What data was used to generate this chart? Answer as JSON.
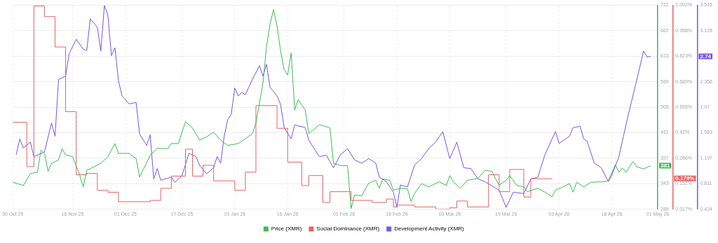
{
  "chart_data": {
    "type": "line",
    "legend": "bottom",
    "grid": true,
    "marker": "none",
    "line_style": "solid",
    "xlim": [
      "2025-10-30",
      "2026-05-01"
    ],
    "xticks": [
      {
        "value": "2025-10-30",
        "label": "30 Oct 25"
      },
      {
        "value": "2025-11-16",
        "label": "16 Nov 25"
      },
      {
        "value": "2025-12-01",
        "label": "01 Dec 25"
      },
      {
        "value": "2025-12-17",
        "label": "17 Dec 25"
      },
      {
        "value": "2026-01-01",
        "label": "01 Jan 26"
      },
      {
        "value": "2026-01-16",
        "label": "16 Jan 26"
      },
      {
        "value": "2026-02-01",
        "label": "01 Feb 26"
      },
      {
        "value": "2026-02-16",
        "label": "16 Feb 26"
      },
      {
        "value": "2026-03-03",
        "label": "03 Mar 26"
      },
      {
        "value": "2026-03-19",
        "label": "19 Mar 26"
      },
      {
        "value": "2026-04-03",
        "label": "03 Apr 26"
      },
      {
        "value": "2026-04-18",
        "label": "18 Apr 26"
      },
      {
        "value": "2026-05-01",
        "label": "01 May 26"
      }
    ],
    "ylim": [
      289,
      721
    ],
    "yticks": [
      289,
      343,
      381,
      397,
      451,
      505,
      559,
      613,
      667,
      721
    ],
    "y2lim": [
      0.017,
      1.092
    ],
    "y2ticks": [
      {
        "value": 0.017,
        "label": "0.017%"
      },
      {
        "value": 0.152,
        "label": "0.152%"
      },
      {
        "value": 0.179,
        "label": "0.179%"
      },
      {
        "value": 0.286,
        "label": "0.286%"
      },
      {
        "value": 0.42,
        "label": "0.42%"
      },
      {
        "value": 0.555,
        "label": "0.555%"
      },
      {
        "value": 0.689,
        "label": "0.689%"
      },
      {
        "value": 0.823,
        "label": "0.823%"
      },
      {
        "value": 0.958,
        "label": "0.958%"
      },
      {
        "value": 1.092,
        "label": "1.092%"
      }
    ],
    "y3lim": [
      0.424,
      3.515
    ],
    "y3ticks": [
      0.424,
      0.811,
      1.197,
      1.583,
      1.97,
      2.356,
      2.74,
      3.128,
      3.515
    ],
    "series": [
      {
        "name": "Price (XMR)",
        "type": "line",
        "color": "#3dbb55",
        "x": [
          "2025-10-30",
          "2025-11-02",
          "2025-11-04",
          "2025-11-06",
          "2025-11-07",
          "2025-11-08",
          "2025-11-09",
          "2025-11-10",
          "2025-11-12",
          "2025-11-13",
          "2025-11-14",
          "2025-11-16",
          "2025-11-18",
          "2025-11-19",
          "2025-11-20",
          "2025-11-24",
          "2025-11-26",
          "2025-11-28",
          "2025-11-29",
          "2025-12-02",
          "2025-12-04",
          "2025-12-05",
          "2025-12-08",
          "2025-12-10",
          "2025-12-13",
          "2025-12-14",
          "2025-12-16",
          "2025-12-18",
          "2025-12-20",
          "2025-12-22",
          "2025-12-24",
          "2025-12-26",
          "2025-12-28",
          "2025-12-30",
          "2026-01-02",
          "2026-01-04",
          "2026-01-06",
          "2026-01-07",
          "2026-01-09",
          "2026-01-10",
          "2026-01-11",
          "2026-01-12",
          "2026-01-13",
          "2026-01-14",
          "2026-01-15",
          "2026-01-16",
          "2026-01-17",
          "2026-01-18",
          "2026-01-19",
          "2026-01-21",
          "2026-01-22",
          "2026-01-25",
          "2026-01-28",
          "2026-01-29",
          "2026-01-31",
          "2026-02-02",
          "2026-02-03",
          "2026-02-04",
          "2026-02-06",
          "2026-02-08",
          "2026-02-10",
          "2026-02-11",
          "2026-02-12",
          "2026-02-14",
          "2026-02-15",
          "2026-02-17",
          "2026-02-19",
          "2026-02-20",
          "2026-02-21",
          "2026-02-23",
          "2026-02-25",
          "2026-02-28",
          "2026-03-02",
          "2026-03-03",
          "2026-03-04",
          "2026-03-06",
          "2026-03-08",
          "2026-03-11",
          "2026-03-13",
          "2026-03-15",
          "2026-03-16",
          "2026-03-17",
          "2026-03-19",
          "2026-03-20",
          "2026-03-22",
          "2026-03-24",
          "2026-03-25",
          "2026-03-28",
          "2026-03-30",
          "2026-04-01",
          "2026-04-02",
          "2026-04-06",
          "2026-04-07",
          "2026-04-08",
          "2026-04-10",
          "2026-04-12",
          "2026-04-16",
          "2026-04-17",
          "2026-04-19",
          "2026-04-20",
          "2026-04-21",
          "2026-04-22",
          "2026-04-24",
          "2026-04-25",
          "2026-04-27",
          "2026-04-29"
        ],
        "values": [
          346,
          339,
          364,
          367,
          414,
          408,
          369,
          386,
          393,
          417,
          404,
          400,
          361,
          336,
          371,
          386,
          400,
          428,
          407,
          407,
          396,
          357,
          403,
          418,
          417,
          428,
          428,
          474,
          461,
          435,
          442,
          452,
          435,
          424,
          428,
          438,
          449,
          471,
          556,
          634,
          681,
          712,
          677,
          624,
          585,
          573,
          620,
          499,
          521,
          499,
          449,
          468,
          461,
          386,
          381,
          381,
          290,
          319,
          317,
          344,
          350,
          333,
          353,
          350,
          329,
          333,
          332,
          305,
          322,
          343,
          336,
          347,
          339,
          360,
          347,
          333,
          350,
          354,
          371,
          369,
          353,
          340,
          350,
          360,
          339,
          336,
          326,
          333,
          325,
          315,
          329,
          343,
          325,
          346,
          336,
          346,
          347,
          350,
          383,
          367,
          376,
          367,
          390,
          379,
          374,
          381
        ]
      },
      {
        "name": "Social Dominance (XMR)",
        "type": "step",
        "axis": "y2",
        "color": "#e36464",
        "x": [
          "2025-10-30",
          "2025-11-03",
          "2025-11-05",
          "2025-11-08",
          "2025-11-11",
          "2025-11-14",
          "2025-11-17",
          "2025-11-20",
          "2025-11-23",
          "2025-11-26",
          "2025-11-29",
          "2025-12-08",
          "2025-12-11",
          "2025-12-14",
          "2025-12-18",
          "2025-12-20",
          "2025-12-23",
          "2025-12-26",
          "2026-01-01",
          "2026-01-04",
          "2026-01-07",
          "2026-01-13",
          "2026-01-16",
          "2026-01-20",
          "2026-01-22",
          "2026-01-26",
          "2026-01-28",
          "2026-02-03",
          "2026-02-09",
          "2026-02-13",
          "2026-02-15",
          "2026-02-16",
          "2026-02-21",
          "2026-02-27",
          "2026-03-03",
          "2026-03-05",
          "2026-03-08",
          "2026-03-14",
          "2026-03-17",
          "2026-03-20",
          "2026-03-24",
          "2026-03-26",
          "2026-04-01"
        ],
        "values": [
          0.475,
          0.241,
          1.088,
          1.032,
          0.872,
          0.531,
          0.198,
          0.205,
          0.116,
          0.106,
          0.056,
          0.063,
          0.127,
          0.191,
          0.333,
          0.191,
          0.248,
          0.166,
          0.116,
          0.212,
          0.563,
          0.443,
          0.265,
          0.141,
          0.194,
          0.052,
          0.109,
          0.063,
          0.052,
          0.07,
          0.028,
          0.038,
          0.028,
          0.017,
          0.024,
          0.06,
          0.028,
          0.198,
          0.109,
          0.226,
          0.081,
          0.177,
          0.179
        ]
      },
      {
        "name": "Development Activity (XMR)",
        "type": "line",
        "axis": "y3",
        "color": "#7753ee",
        "x": [
          "2025-10-31",
          "2025-11-01",
          "2025-11-02",
          "2025-11-04",
          "2025-11-05",
          "2025-11-08",
          "2025-11-10",
          "2025-11-11",
          "2025-11-12",
          "2025-11-14",
          "2025-11-15",
          "2025-11-17",
          "2025-11-19",
          "2025-11-20",
          "2025-11-21",
          "2025-11-23",
          "2025-11-24",
          "2025-11-25",
          "2025-11-26",
          "2025-11-27",
          "2025-11-28",
          "2025-11-29",
          "2025-11-30",
          "2025-12-02",
          "2025-12-04",
          "2025-12-05",
          "2025-12-07",
          "2025-12-08",
          "2025-12-09",
          "2025-12-10",
          "2025-12-11",
          "2025-12-14",
          "2025-12-15",
          "2025-12-17",
          "2025-12-19",
          "2025-12-21",
          "2025-12-22",
          "2025-12-24",
          "2025-12-26",
          "2025-12-27",
          "2025-12-28",
          "2025-12-29",
          "2025-12-30",
          "2025-12-31",
          "2026-01-01",
          "2026-01-02",
          "2026-01-03",
          "2026-01-04",
          "2026-01-06",
          "2026-01-08",
          "2026-01-09",
          "2026-01-10",
          "2026-01-11",
          "2026-01-13",
          "2026-01-14",
          "2026-01-15",
          "2026-01-17",
          "2026-01-18",
          "2026-01-21",
          "2026-01-22",
          "2026-01-25",
          "2026-01-27",
          "2026-01-29",
          "2026-01-31",
          "2026-02-02",
          "2026-02-04",
          "2026-02-06",
          "2026-02-08",
          "2026-02-10",
          "2026-02-11",
          "2026-02-13",
          "2026-02-15",
          "2026-02-16",
          "2026-02-17",
          "2026-02-19",
          "2026-02-21",
          "2026-02-23",
          "2026-02-25",
          "2026-02-27",
          "2026-03-01",
          "2026-03-03",
          "2026-03-05",
          "2026-03-07",
          "2026-03-09",
          "2026-03-11",
          "2026-03-13",
          "2026-03-17",
          "2026-03-19",
          "2026-03-21",
          "2026-03-24",
          "2026-03-26",
          "2026-03-28",
          "2026-03-30",
          "2026-04-02",
          "2026-04-03",
          "2026-04-06",
          "2026-04-07",
          "2026-04-09",
          "2026-04-10",
          "2026-04-11",
          "2026-04-13",
          "2026-04-15",
          "2026-04-17",
          "2026-04-18",
          "2026-04-20",
          "2026-04-22",
          "2026-04-23",
          "2026-04-25",
          "2026-04-27",
          "2026-04-28",
          "2026-04-29"
        ],
        "values": [
          1.25,
          1.49,
          1.35,
          1.44,
          1.22,
          1.29,
          1.73,
          1.53,
          2.39,
          2.44,
          2.78,
          3.0,
          2.85,
          2.83,
          3.31,
          3.18,
          2.82,
          3.51,
          3.36,
          2.75,
          2.87,
          2.37,
          2.14,
          2.02,
          2.04,
          1.56,
          1.39,
          1.55,
          0.88,
          1.04,
          0.86,
          0.91,
          0.83,
          0.93,
          1.27,
          1.22,
          1.09,
          0.96,
          1.05,
          1.22,
          1.12,
          1.53,
          1.78,
          1.86,
          2.26,
          2.14,
          2.19,
          2.16,
          2.39,
          2.6,
          2.44,
          2.62,
          2.27,
          2.14,
          2.01,
          1.66,
          1.49,
          1.7,
          1.66,
          1.47,
          1.22,
          1.24,
          1.05,
          1.25,
          1.34,
          1.17,
          1.12,
          1.19,
          1.12,
          0.91,
          0.84,
          0.68,
          0.45,
          0.79,
          0.76,
          1.09,
          1.19,
          1.34,
          1.44,
          1.6,
          1.19,
          1.44,
          1.05,
          1.04,
          0.88,
          0.84,
          0.71,
          0.45,
          0.68,
          0.66,
          0.88,
          0.91,
          1.25,
          1.6,
          1.42,
          1.53,
          1.66,
          1.68,
          1.49,
          1.45,
          1.12,
          1.05,
          0.84,
          0.94,
          1.22,
          1.7,
          1.93,
          2.37,
          2.82,
          2.73,
          2.74
        ]
      }
    ]
  }
}
